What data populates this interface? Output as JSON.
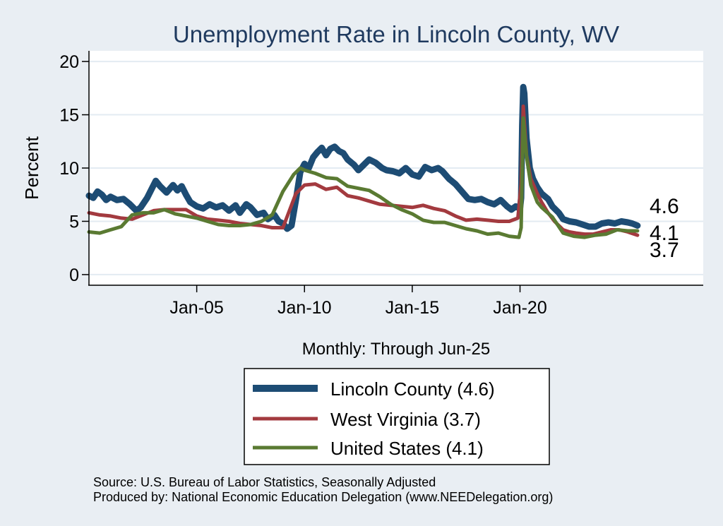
{
  "chart_data": {
    "type": "line",
    "title": "Unemployment Rate in Lincoln  County, WV",
    "ylabel": "Percent",
    "xlabel": "Monthly: Through Jun-25",
    "ylim": [
      -1,
      21
    ],
    "xlim": [
      2000.0,
      2028.5
    ],
    "yticks": [
      {
        "value": 0,
        "label": "0"
      },
      {
        "value": 5,
        "label": "5"
      },
      {
        "value": 10,
        "label": "10"
      },
      {
        "value": 15,
        "label": "15"
      },
      {
        "value": 20,
        "label": "20"
      }
    ],
    "xticks": [
      {
        "value": 2005,
        "label": "Jan-05"
      },
      {
        "value": 2010,
        "label": "Jan-10"
      },
      {
        "value": 2015,
        "label": "Jan-15"
      },
      {
        "value": 2020,
        "label": "Jan-20"
      }
    ],
    "grid": true,
    "series": [
      {
        "name": "Lincoln  County",
        "legend": "Lincoln  County (4.6)",
        "color": "#1d4c74",
        "last_label": "4.6",
        "points": [
          [
            2000.0,
            7.4
          ],
          [
            2000.2,
            7.2
          ],
          [
            2000.4,
            7.8
          ],
          [
            2000.6,
            7.5
          ],
          [
            2000.8,
            7.0
          ],
          [
            2001.0,
            7.3
          ],
          [
            2001.3,
            7.0
          ],
          [
            2001.6,
            7.1
          ],
          [
            2001.9,
            6.6
          ],
          [
            2002.2,
            6.0
          ],
          [
            2002.4,
            6.3
          ],
          [
            2002.7,
            7.2
          ],
          [
            2002.9,
            8.0
          ],
          [
            2003.1,
            8.8
          ],
          [
            2003.3,
            8.3
          ],
          [
            2003.6,
            7.7
          ],
          [
            2003.9,
            8.4
          ],
          [
            2004.1,
            7.9
          ],
          [
            2004.3,
            8.3
          ],
          [
            2004.5,
            7.5
          ],
          [
            2004.7,
            6.8
          ],
          [
            2005.0,
            6.4
          ],
          [
            2005.3,
            6.2
          ],
          [
            2005.6,
            6.6
          ],
          [
            2005.9,
            6.3
          ],
          [
            2006.2,
            6.5
          ],
          [
            2006.5,
            6.0
          ],
          [
            2006.8,
            6.5
          ],
          [
            2007.0,
            5.8
          ],
          [
            2007.3,
            6.6
          ],
          [
            2007.5,
            6.3
          ],
          [
            2007.8,
            5.6
          ],
          [
            2008.1,
            5.8
          ],
          [
            2008.3,
            5.2
          ],
          [
            2008.6,
            5.6
          ],
          [
            2008.8,
            5.0
          ],
          [
            2009.0,
            4.8
          ],
          [
            2009.2,
            4.3
          ],
          [
            2009.4,
            4.6
          ],
          [
            2009.6,
            7.0
          ],
          [
            2009.8,
            9.6
          ],
          [
            2010.0,
            10.4
          ],
          [
            2010.2,
            10.0
          ],
          [
            2010.4,
            11.0
          ],
          [
            2010.6,
            11.5
          ],
          [
            2010.8,
            11.9
          ],
          [
            2011.0,
            11.2
          ],
          [
            2011.2,
            11.8
          ],
          [
            2011.4,
            12.0
          ],
          [
            2011.6,
            11.6
          ],
          [
            2011.8,
            11.4
          ],
          [
            2012.0,
            10.8
          ],
          [
            2012.3,
            10.3
          ],
          [
            2012.5,
            9.8
          ],
          [
            2012.8,
            10.4
          ],
          [
            2013.0,
            10.8
          ],
          [
            2013.3,
            10.5
          ],
          [
            2013.6,
            10.0
          ],
          [
            2013.8,
            9.8
          ],
          [
            2014.1,
            9.7
          ],
          [
            2014.4,
            9.5
          ],
          [
            2014.7,
            10.0
          ],
          [
            2015.0,
            9.4
          ],
          [
            2015.3,
            9.2
          ],
          [
            2015.6,
            10.1
          ],
          [
            2015.9,
            9.8
          ],
          [
            2016.2,
            10.0
          ],
          [
            2016.4,
            9.7
          ],
          [
            2016.7,
            9.0
          ],
          [
            2017.0,
            8.5
          ],
          [
            2017.3,
            7.8
          ],
          [
            2017.6,
            7.1
          ],
          [
            2017.9,
            7.0
          ],
          [
            2018.2,
            7.1
          ],
          [
            2018.5,
            6.8
          ],
          [
            2018.8,
            6.6
          ],
          [
            2019.1,
            7.0
          ],
          [
            2019.4,
            6.4
          ],
          [
            2019.6,
            6.1
          ],
          [
            2019.8,
            6.4
          ],
          [
            2020.0,
            6.2
          ],
          [
            2020.05,
            7.2
          ],
          [
            2020.1,
            14.0
          ],
          [
            2020.15,
            17.6
          ],
          [
            2020.2,
            17.0
          ],
          [
            2020.3,
            12.8
          ],
          [
            2020.45,
            10.0
          ],
          [
            2020.6,
            9.0
          ],
          [
            2020.8,
            8.2
          ],
          [
            2021.0,
            7.6
          ],
          [
            2021.3,
            7.1
          ],
          [
            2021.5,
            6.4
          ],
          [
            2021.8,
            5.8
          ],
          [
            2022.0,
            5.2
          ],
          [
            2022.3,
            5.0
          ],
          [
            2022.6,
            4.9
          ],
          [
            2022.9,
            4.7
          ],
          [
            2023.2,
            4.5
          ],
          [
            2023.5,
            4.5
          ],
          [
            2023.8,
            4.8
          ],
          [
            2024.1,
            4.9
          ],
          [
            2024.4,
            4.8
          ],
          [
            2024.7,
            5.0
          ],
          [
            2025.0,
            4.9
          ],
          [
            2025.2,
            4.8
          ],
          [
            2025.45,
            4.6
          ]
        ]
      },
      {
        "name": "West Virginia",
        "legend": "West Virginia (3.7)",
        "color": "#a33a3f",
        "last_label": "3.7",
        "points": [
          [
            2000.0,
            5.8
          ],
          [
            2000.5,
            5.6
          ],
          [
            2001.0,
            5.5
          ],
          [
            2001.5,
            5.3
          ],
          [
            2002.0,
            5.2
          ],
          [
            2002.5,
            5.6
          ],
          [
            2003.0,
            6.0
          ],
          [
            2003.5,
            6.1
          ],
          [
            2004.0,
            6.1
          ],
          [
            2004.5,
            6.1
          ],
          [
            2005.0,
            5.5
          ],
          [
            2005.5,
            5.2
          ],
          [
            2006.0,
            5.1
          ],
          [
            2006.5,
            5.0
          ],
          [
            2007.0,
            4.8
          ],
          [
            2007.5,
            4.7
          ],
          [
            2008.0,
            4.6
          ],
          [
            2008.5,
            4.4
          ],
          [
            2009.0,
            4.4
          ],
          [
            2009.3,
            6.0
          ],
          [
            2009.6,
            7.6
          ],
          [
            2010.0,
            8.4
          ],
          [
            2010.5,
            8.5
          ],
          [
            2011.0,
            8.0
          ],
          [
            2011.5,
            8.2
          ],
          [
            2012.0,
            7.4
          ],
          [
            2012.5,
            7.2
          ],
          [
            2013.0,
            6.9
          ],
          [
            2013.5,
            6.6
          ],
          [
            2014.0,
            6.5
          ],
          [
            2014.5,
            6.4
          ],
          [
            2015.0,
            6.3
          ],
          [
            2015.5,
            6.5
          ],
          [
            2016.0,
            6.2
          ],
          [
            2016.5,
            6.0
          ],
          [
            2017.0,
            5.5
          ],
          [
            2017.5,
            5.1
          ],
          [
            2018.0,
            5.2
          ],
          [
            2018.5,
            5.1
          ],
          [
            2019.0,
            5.0
          ],
          [
            2019.5,
            5.0
          ],
          [
            2019.9,
            5.3
          ],
          [
            2020.05,
            8.5
          ],
          [
            2020.15,
            15.8
          ],
          [
            2020.3,
            11.2
          ],
          [
            2020.5,
            9.0
          ],
          [
            2020.8,
            7.6
          ],
          [
            2021.0,
            6.8
          ],
          [
            2021.3,
            5.8
          ],
          [
            2021.6,
            5.0
          ],
          [
            2022.0,
            4.2
          ],
          [
            2022.3,
            4.0
          ],
          [
            2022.6,
            3.9
          ],
          [
            2023.0,
            3.8
          ],
          [
            2023.4,
            3.8
          ],
          [
            2023.8,
            4.0
          ],
          [
            2024.2,
            4.2
          ],
          [
            2024.6,
            4.2
          ],
          [
            2025.0,
            4.0
          ],
          [
            2025.45,
            3.7
          ]
        ]
      },
      {
        "name": "United States",
        "legend": "United States (4.1)",
        "color": "#5a7a32",
        "last_label": "4.1",
        "points": [
          [
            2000.0,
            4.0
          ],
          [
            2000.5,
            3.9
          ],
          [
            2001.0,
            4.2
          ],
          [
            2001.5,
            4.5
          ],
          [
            2002.0,
            5.6
          ],
          [
            2002.5,
            5.8
          ],
          [
            2003.0,
            5.8
          ],
          [
            2003.5,
            6.1
          ],
          [
            2004.0,
            5.7
          ],
          [
            2004.5,
            5.5
          ],
          [
            2005.0,
            5.3
          ],
          [
            2005.5,
            5.0
          ],
          [
            2006.0,
            4.7
          ],
          [
            2006.5,
            4.6
          ],
          [
            2007.0,
            4.6
          ],
          [
            2007.5,
            4.7
          ],
          [
            2008.0,
            5.0
          ],
          [
            2008.5,
            5.6
          ],
          [
            2009.0,
            7.8
          ],
          [
            2009.5,
            9.4
          ],
          [
            2009.8,
            10.0
          ],
          [
            2010.0,
            9.8
          ],
          [
            2010.5,
            9.5
          ],
          [
            2011.0,
            9.1
          ],
          [
            2011.5,
            9.0
          ],
          [
            2012.0,
            8.3
          ],
          [
            2012.5,
            8.1
          ],
          [
            2013.0,
            7.9
          ],
          [
            2013.5,
            7.3
          ],
          [
            2014.0,
            6.6
          ],
          [
            2014.5,
            6.1
          ],
          [
            2015.0,
            5.7
          ],
          [
            2015.5,
            5.1
          ],
          [
            2016.0,
            4.9
          ],
          [
            2016.5,
            4.9
          ],
          [
            2017.0,
            4.6
          ],
          [
            2017.5,
            4.3
          ],
          [
            2018.0,
            4.1
          ],
          [
            2018.5,
            3.8
          ],
          [
            2019.0,
            3.9
          ],
          [
            2019.5,
            3.6
          ],
          [
            2019.95,
            3.5
          ],
          [
            2020.05,
            4.4
          ],
          [
            2020.15,
            14.7
          ],
          [
            2020.3,
            11.1
          ],
          [
            2020.5,
            8.4
          ],
          [
            2020.8,
            6.8
          ],
          [
            2021.0,
            6.3
          ],
          [
            2021.5,
            5.4
          ],
          [
            2022.0,
            3.9
          ],
          [
            2022.5,
            3.6
          ],
          [
            2023.0,
            3.5
          ],
          [
            2023.5,
            3.7
          ],
          [
            2024.0,
            3.8
          ],
          [
            2024.5,
            4.2
          ],
          [
            2025.0,
            4.1
          ],
          [
            2025.45,
            4.1
          ]
        ]
      }
    ]
  },
  "footer": {
    "source": "Source: U.S. Bureau of Labor Statistics, Seasonally Adjusted",
    "produced_by": "Produced by: National Economic Education Delegation (www.NEEDelegation.org)"
  }
}
